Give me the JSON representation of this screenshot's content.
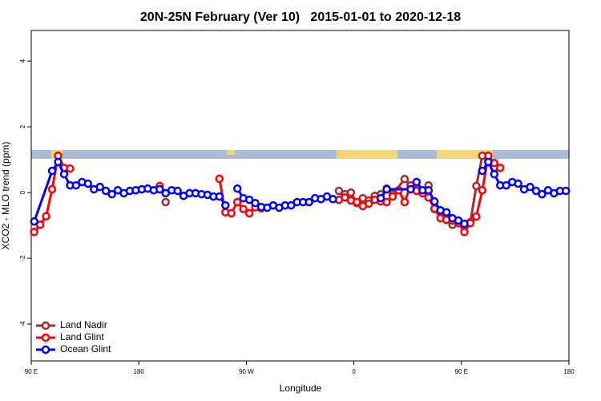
{
  "chart_data": {
    "type": "line",
    "title": "20N-25N February (Ver 10)   2015-01-01 to 2020-12-18",
    "x_label": "Longitude",
    "y_label": "XCO2 - MLO trend (ppm)",
    "xlim": [
      90,
      540
    ],
    "xticks": [
      {
        "value": 90,
        "label": "90 E"
      },
      {
        "value": 180,
        "label": "180"
      },
      {
        "value": 270,
        "label": "90 W"
      },
      {
        "value": 360,
        "label": "0"
      },
      {
        "value": 450,
        "label": "90 E"
      },
      {
        "value": 540,
        "label": "180"
      }
    ],
    "ylim": [
      -5.12,
      4.93
    ],
    "yticks": [
      -4,
      -2,
      0,
      2,
      4
    ],
    "legend": "bottom-left",
    "series": [
      {
        "name": "Land Nadir",
        "color": "#a52a2a",
        "x": [
          202.5,
          207.5,
          347.5,
          352.5,
          357.5,
          362.5,
          367.5,
          372.5,
          377.5,
          382.5,
          387.5,
          392.5,
          402.5,
          407.5,
          412.5,
          417.5,
          422.5,
          427.5,
          432.5,
          437.5,
          442.5,
          447.5,
          457.5,
          462.5,
          467.5,
          472.5,
          477.5
        ],
        "values": [
          -0.29,
          null,
          0.05,
          -0.05,
          0.0,
          -0.32,
          -0.17,
          -0.24,
          -0.1,
          -0.05,
          0.12,
          -0.05,
          0.41,
          0.2,
          0.07,
          0.0,
          0.22,
          -0.5,
          -0.62,
          -0.66,
          -0.98,
          -0.93,
          -0.9,
          0.2,
          1.12,
          0.95,
          0.76
        ]
      },
      {
        "name": "Land Glint",
        "color": "#ff0000",
        "x": [
          92.5,
          97.5,
          102.5,
          107.5,
          112.5,
          117.5,
          122.5,
          127.5,
          197.5,
          202.5,
          247.5,
          252.5,
          257.5,
          262.5,
          267.5,
          272.5,
          277.5,
          282.5,
          287.5,
          347.5,
          352.5,
          357.5,
          362.5,
          367.5,
          372.5,
          377.5,
          382.5,
          387.5,
          392.5,
          397.5,
          402.5,
          407.5,
          412.5,
          417.5,
          422.5,
          427.5,
          432.5,
          437.5,
          442.5,
          447.5,
          452.5,
          457.5,
          462.5,
          467.5,
          472.5,
          477.5,
          482.5
        ],
        "values": [
          -1.2,
          -0.98,
          -0.72,
          0.1,
          1.12,
          0.75,
          0.73,
          null,
          0.2,
          null,
          0.42,
          -0.6,
          -0.63,
          -0.29,
          -0.5,
          -0.63,
          -0.45,
          -0.48,
          null,
          -0.22,
          -0.15,
          -0.24,
          -0.29,
          -0.41,
          -0.34,
          -0.22,
          -0.27,
          -0.29,
          -0.12,
          0.07,
          -0.29,
          0.22,
          0.05,
          -0.02,
          -0.15,
          -0.49,
          -0.78,
          -0.83,
          -0.85,
          -0.93,
          -1.2,
          -0.93,
          -0.73,
          0.07,
          1.12,
          0.9,
          0.75
        ]
      },
      {
        "name": "Ocean Glint",
        "color": "#0000ff",
        "x": [
          92.5,
          107.5,
          112.5,
          117.5,
          122.5,
          127.5,
          132.5,
          137.5,
          142.5,
          147.5,
          152.5,
          157.5,
          162.5,
          167.5,
          172.5,
          177.5,
          182.5,
          187.5,
          192.5,
          197.5,
          202.5,
          207.5,
          212.5,
          217.5,
          222.5,
          227.5,
          232.5,
          237.5,
          242.5,
          247.5,
          252.5,
          257.5,
          262.5,
          267.5,
          272.5,
          277.5,
          282.5,
          287.5,
          292.5,
          297.5,
          302.5,
          307.5,
          312.5,
          317.5,
          322.5,
          327.5,
          332.5,
          337.5,
          342.5,
          347.5,
          382.5,
          387.5,
          407.5,
          412.5,
          417.5,
          422.5,
          427.5,
          432.5,
          437.5,
          442.5,
          447.5,
          452.5,
          457.5,
          467.5,
          472.5,
          477.5,
          482.5,
          487.5,
          492.5,
          497.5,
          502.5,
          507.5,
          512.5,
          517.5,
          522.5,
          527.5,
          532.5,
          537.5
        ],
        "values": [
          -0.88,
          0.66,
          0.93,
          0.56,
          0.22,
          0.22,
          0.32,
          0.27,
          0.1,
          0.17,
          0.05,
          -0.05,
          0.07,
          -0.02,
          0.05,
          0.07,
          0.1,
          0.12,
          0.07,
          0.1,
          -0.02,
          0.07,
          0.05,
          -0.1,
          -0.02,
          -0.02,
          -0.05,
          -0.07,
          -0.12,
          -0.12,
          -0.39,
          null,
          0.12,
          -0.17,
          -0.22,
          -0.32,
          -0.44,
          -0.46,
          -0.39,
          -0.46,
          -0.39,
          -0.39,
          -0.29,
          -0.29,
          -0.29,
          -0.17,
          -0.2,
          -0.12,
          -0.2,
          null,
          -0.17,
          0.1,
          0.1,
          0.32,
          0.07,
          0.07,
          -0.27,
          -0.54,
          -0.6,
          -0.78,
          -0.85,
          -0.95,
          null,
          0.66,
          0.93,
          0.56,
          0.22,
          0.22,
          0.32,
          0.27,
          0.1,
          0.17,
          0.05,
          -0.05,
          0.07,
          -0.02,
          0.05,
          0.05
        ]
      }
    ]
  }
}
